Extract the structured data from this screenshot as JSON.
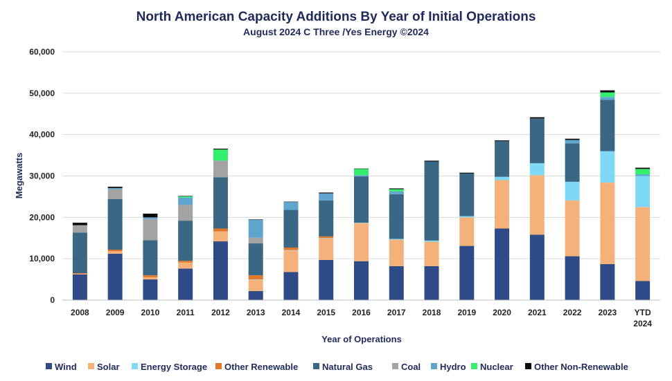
{
  "chart_data": {
    "type": "bar",
    "stacked": true,
    "title": "North American Capacity Additions By Year of Initial Operations",
    "subtitle": "August 2024 C Three /Yes Energy ©2024",
    "xlabel": "Year of Operations",
    "ylabel": "Megawatts",
    "ylim": [
      0,
      60000
    ],
    "yticks": [
      0,
      10000,
      20000,
      30000,
      40000,
      50000,
      60000
    ],
    "ytick_labels": [
      "0",
      "10,000",
      "20,000",
      "30,000",
      "40,000",
      "50,000",
      "60,000"
    ],
    "grid": true,
    "legend_position": "bottom",
    "categories": [
      "2008",
      "2009",
      "2010",
      "2011",
      "2012",
      "2013",
      "2014",
      "2015",
      "2016",
      "2017",
      "2018",
      "2019",
      "2020",
      "2021",
      "2022",
      "2023",
      "YTD 2024"
    ],
    "series": [
      {
        "name": "Wind",
        "color": "#2e4a87",
        "values": [
          6200,
          11200,
          5000,
          7600,
          14200,
          2200,
          6800,
          9700,
          9400,
          8200,
          8200,
          13100,
          17300,
          15800,
          10600,
          8700,
          4600
        ]
      },
      {
        "name": "Solar",
        "color": "#f4b17a",
        "values": [
          100,
          600,
          500,
          1500,
          2400,
          2700,
          5200,
          5200,
          9200,
          6400,
          5900,
          6900,
          11700,
          14400,
          13500,
          19700,
          17900
        ]
      },
      {
        "name": "Energy Storage",
        "color": "#7fd9f6",
        "values": [
          0,
          0,
          0,
          0,
          0,
          100,
          100,
          100,
          100,
          200,
          300,
          300,
          800,
          2900,
          4500,
          7600,
          7500
        ]
      },
      {
        "name": "Other Renewable",
        "color": "#e0772a",
        "values": [
          200,
          400,
          500,
          400,
          700,
          1000,
          600,
          400,
          0,
          0,
          0,
          0,
          0,
          0,
          0,
          0,
          0
        ]
      },
      {
        "name": "Natural Gas",
        "color": "#3a6784",
        "values": [
          9800,
          12200,
          8500,
          9700,
          12400,
          7700,
          9100,
          8700,
          11200,
          10800,
          19100,
          10300,
          8600,
          10800,
          9300,
          12400,
          0
        ]
      },
      {
        "name": "Coal",
        "color": "#a3a3a3",
        "values": [
          1800,
          2400,
          5100,
          3800,
          4000,
          1400,
          0,
          0,
          0,
          0,
          0,
          0,
          0,
          0,
          0,
          0,
          0
        ]
      },
      {
        "name": "Hydro",
        "color": "#5ea5cf",
        "values": [
          0,
          300,
          400,
          1800,
          0,
          4300,
          1900,
          1700,
          300,
          700,
          0,
          0,
          0,
          0,
          800,
          700,
          400
        ]
      },
      {
        "name": "Nuclear",
        "color": "#33ef6c",
        "values": [
          0,
          0,
          0,
          300,
          2700,
          0,
          0,
          0,
          1500,
          500,
          0,
          0,
          0,
          0,
          0,
          1100,
          1300
        ]
      },
      {
        "name": "Other Non-Renewable",
        "color": "#0a0a0a",
        "values": [
          600,
          300,
          900,
          100,
          200,
          100,
          100,
          200,
          100,
          200,
          200,
          200,
          200,
          300,
          300,
          500,
          300
        ]
      }
    ]
  }
}
